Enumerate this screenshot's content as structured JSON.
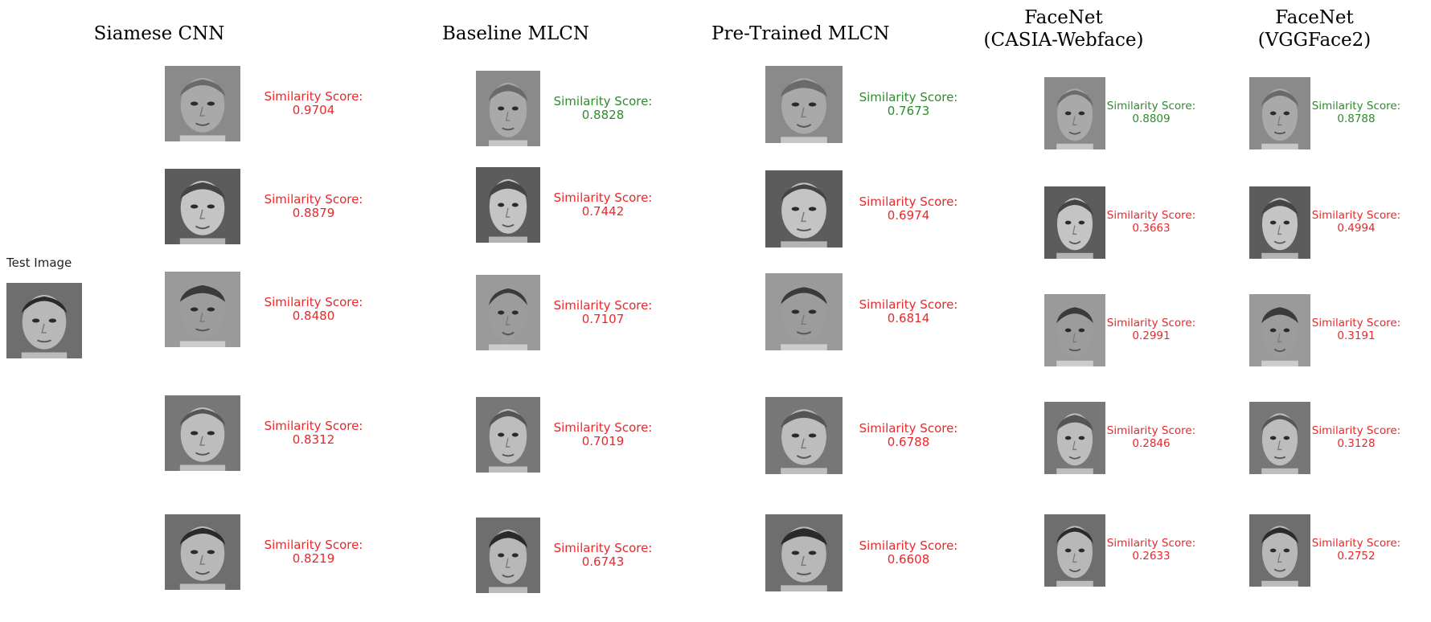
{
  "colors": {
    "match": "#2e8b2e",
    "nonmatch": "#e8282a"
  },
  "test_image": {
    "label": "Test Image"
  },
  "score_label": "Similarity Score:",
  "columns": [
    {
      "title_lines": [
        "Siamese CNN"
      ],
      "results": [
        {
          "score": "0.9704",
          "match": false
        },
        {
          "score": "0.8879",
          "match": false
        },
        {
          "score": "0.8480",
          "match": false
        },
        {
          "score": "0.8312",
          "match": false
        },
        {
          "score": "0.8219",
          "match": false
        }
      ]
    },
    {
      "title_lines": [
        "Baseline MLCN"
      ],
      "results": [
        {
          "score": "0.8828",
          "match": true
        },
        {
          "score": "0.7442",
          "match": false
        },
        {
          "score": "0.7107",
          "match": false
        },
        {
          "score": "0.7019",
          "match": false
        },
        {
          "score": "0.6743",
          "match": false
        }
      ]
    },
    {
      "title_lines": [
        "Pre-Trained MLCN"
      ],
      "results": [
        {
          "score": "0.7673",
          "match": true
        },
        {
          "score": "0.6974",
          "match": false
        },
        {
          "score": "0.6814",
          "match": false
        },
        {
          "score": "0.6788",
          "match": false
        },
        {
          "score": "0.6608",
          "match": false
        }
      ]
    },
    {
      "title_lines": [
        "FaceNet",
        "(CASIA-Webface)"
      ],
      "results": [
        {
          "score": "0.8809",
          "match": true
        },
        {
          "score": "0.3663",
          "match": false
        },
        {
          "score": "0.2991",
          "match": false
        },
        {
          "score": "0.2846",
          "match": false
        },
        {
          "score": "0.2633",
          "match": false
        }
      ]
    },
    {
      "title_lines": [
        "FaceNet",
        "(VGGFace2)"
      ],
      "results": [
        {
          "score": "0.8788",
          "match": true
        },
        {
          "score": "0.4994",
          "match": false
        },
        {
          "score": "0.3191",
          "match": false
        },
        {
          "score": "0.3128",
          "match": false
        },
        {
          "score": "0.2752",
          "match": false
        }
      ]
    }
  ]
}
